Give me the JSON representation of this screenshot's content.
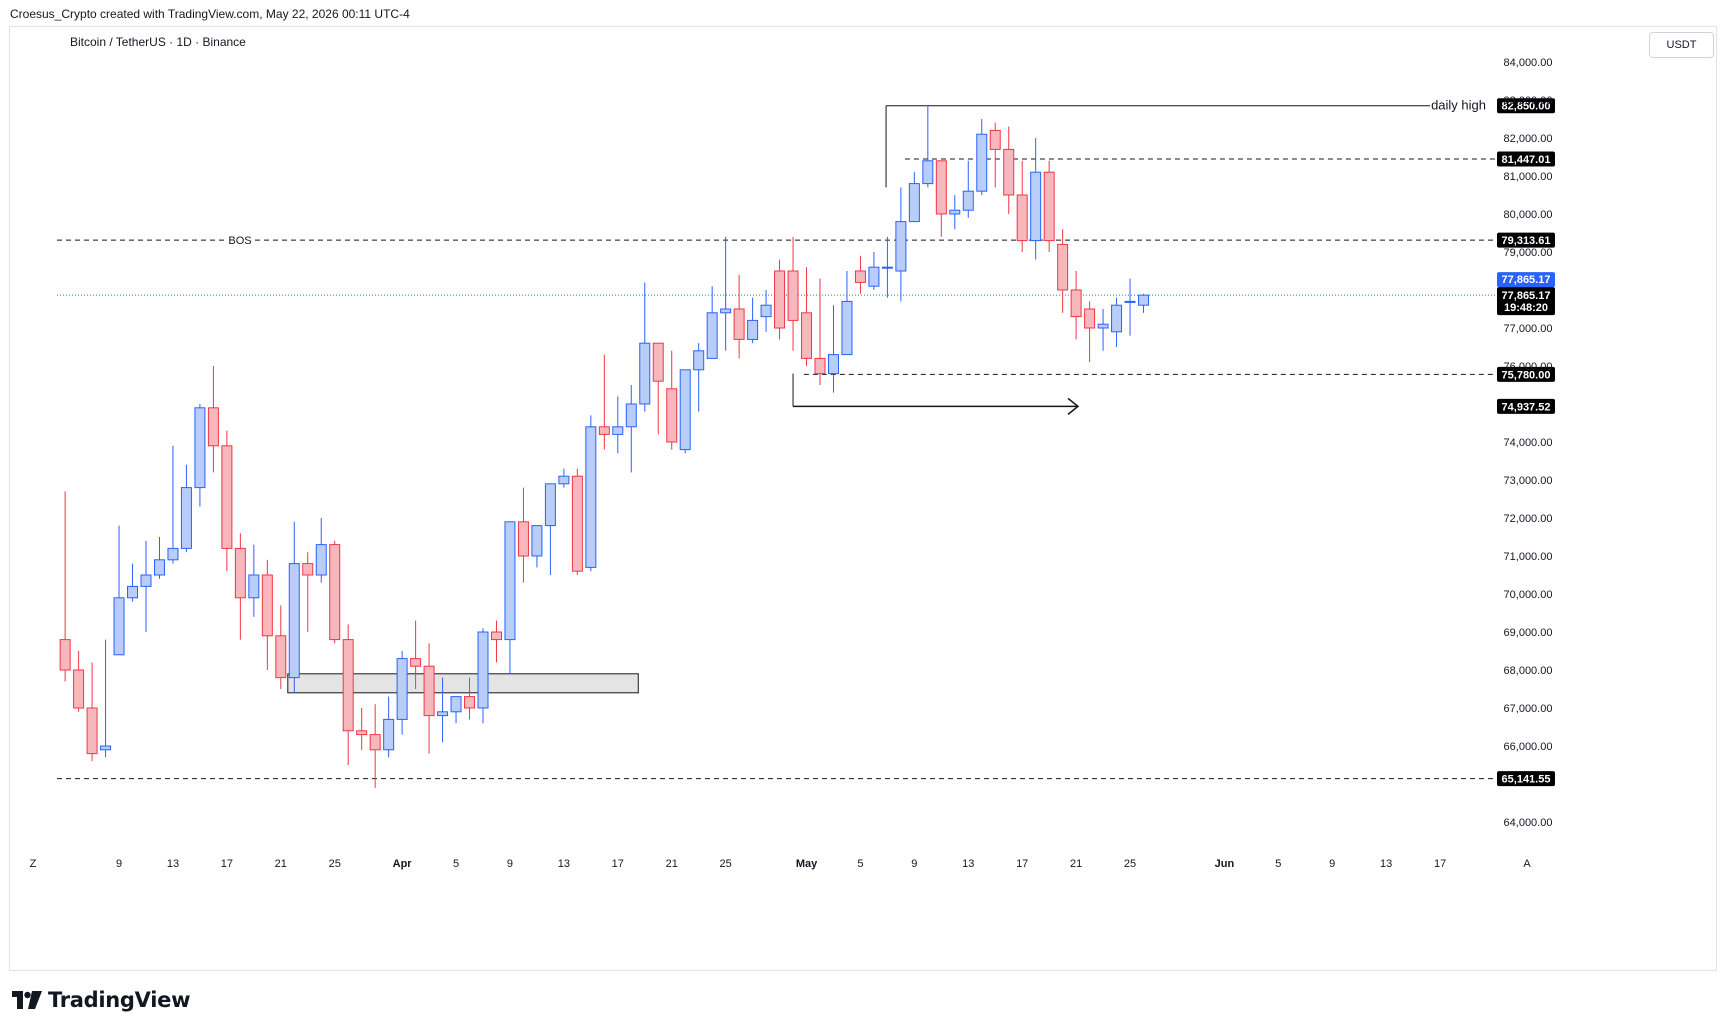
{
  "header": {
    "created_by": "Croesus_Crypto created with TradingView.com, May 22, 2026 00:11 UTC-4"
  },
  "symbol": {
    "title": "Bitcoin / TetherUS · 1D · Binance"
  },
  "currency_button": "USDT",
  "brand": {
    "name": "TradingView"
  },
  "colors": {
    "up_fill": "#b8cdf7",
    "up_border": "#2962ff",
    "down_fill": "#f7b8bd",
    "down_border": "#f23645",
    "line": "#131722",
    "current_price": "#2962ff",
    "box_fill": "#e4e4e4"
  },
  "chart_data": {
    "type": "candlestick",
    "price_axis": {
      "range": [
        63300,
        84900
      ],
      "ticks": [
        "84,000.00",
        "83,000.00",
        "82,000.00",
        "81,000.00",
        "80,000.00",
        "79,000.00",
        "77,000.00",
        "76,000.00",
        "74,000.00",
        "73,000.00",
        "72,000.00",
        "71,000.00",
        "70,000.00",
        "69,000.00",
        "68,000.00",
        "67,000.00",
        "66,000.00",
        "64,000.00"
      ],
      "tick_values": [
        84000,
        83000,
        82000,
        81000,
        80000,
        79000,
        77000,
        76000,
        74000,
        73000,
        72000,
        71000,
        70000,
        69000,
        68000,
        67000,
        66000,
        64000
      ]
    },
    "time_axis": {
      "labels": [
        "9",
        "13",
        "17",
        "21",
        "25",
        "Apr",
        "5",
        "9",
        "13",
        "17",
        "21",
        "25",
        "May",
        "5",
        "9",
        "13",
        "17",
        "21",
        "25",
        "Jun",
        "5",
        "9",
        "13",
        "17"
      ],
      "label_days": [
        -52,
        -48,
        -44,
        -40,
        -36,
        -31,
        -27,
        -23,
        -19,
        -15,
        -11,
        -7,
        -1,
        3,
        7,
        11,
        15,
        19,
        23,
        30,
        34,
        38,
        42,
        46
      ],
      "bold_labels": [
        "Apr",
        "May",
        "Jun"
      ],
      "corner_left": "Z",
      "corner_right": "A"
    },
    "candles_start_day": -56,
    "candles": [
      [
        68800,
        72700,
        68000,
        67700
      ],
      [
        68000,
        68500,
        67000,
        66900
      ],
      [
        67000,
        68200,
        65800,
        65600
      ],
      [
        65900,
        68800,
        66000,
        65700
      ],
      [
        68400,
        71800,
        69900,
        68400
      ],
      [
        69900,
        70800,
        70200,
        69800
      ],
      [
        70200,
        71400,
        70500,
        69000
      ],
      [
        70500,
        71500,
        70900,
        70400
      ],
      [
        70900,
        73900,
        71200,
        70800
      ],
      [
        71200,
        73400,
        72800,
        71100
      ],
      [
        72800,
        75000,
        74900,
        72300
      ],
      [
        74900,
        76000,
        73900,
        73200
      ],
      [
        73900,
        74300,
        71200,
        70600
      ],
      [
        71200,
        71600,
        69900,
        68800
      ],
      [
        69900,
        71300,
        70500,
        69400
      ],
      [
        70500,
        70900,
        68900,
        68000
      ],
      [
        68900,
        69700,
        67800,
        67500
      ],
      [
        67800,
        71900,
        70800,
        67400
      ],
      [
        70800,
        71100,
        70500,
        69000
      ],
      [
        70500,
        72000,
        71300,
        70300
      ],
      [
        71300,
        71400,
        68800,
        68700
      ],
      [
        68800,
        69200,
        66400,
        65500
      ],
      [
        66400,
        67000,
        66300,
        65900
      ],
      [
        66300,
        67100,
        65900,
        64900
      ],
      [
        65900,
        67300,
        66700,
        65700
      ],
      [
        66700,
        68500,
        68300,
        66300
      ],
      [
        68300,
        69300,
        68100,
        67500
      ],
      [
        68100,
        68700,
        66800,
        65800
      ],
      [
        66800,
        67800,
        66900,
        66100
      ],
      [
        66900,
        67300,
        67300,
        66600
      ],
      [
        67300,
        67800,
        67000,
        66700
      ],
      [
        67000,
        69100,
        69000,
        66600
      ],
      [
        69000,
        69300,
        68800,
        68200
      ],
      [
        68800,
        71600,
        71900,
        67900
      ],
      [
        71900,
        72800,
        71000,
        70300
      ],
      [
        71000,
        71800,
        71800,
        70700
      ],
      [
        71800,
        72500,
        72900,
        70500
      ],
      [
        72900,
        73300,
        73100,
        72800
      ],
      [
        73100,
        73300,
        70600,
        70500
      ],
      [
        70700,
        74700,
        74400,
        70600
      ],
      [
        74400,
        76300,
        74200,
        73800
      ],
      [
        74200,
        75200,
        74400,
        73700
      ],
      [
        74400,
        75500,
        75000,
        73200
      ],
      [
        75000,
        78200,
        76600,
        74800
      ],
      [
        76600,
        76200,
        75600,
        74200
      ],
      [
        75400,
        76400,
        74000,
        73800
      ],
      [
        73800,
        75600,
        75900,
        73700
      ],
      [
        75900,
        76600,
        76400,
        74800
      ],
      [
        76200,
        78100,
        77400,
        76300
      ],
      [
        77400,
        79400,
        77500,
        76400
      ],
      [
        77500,
        78400,
        76700,
        76200
      ],
      [
        76700,
        77800,
        77200,
        76600
      ],
      [
        77300,
        78000,
        77600,
        76900
      ],
      [
        78500,
        78800,
        77000,
        76700
      ],
      [
        78500,
        79400,
        77200,
        76400
      ],
      [
        77400,
        78600,
        76200,
        76000
      ],
      [
        76200,
        78300,
        75800,
        75500
      ],
      [
        75800,
        77600,
        76300,
        75300
      ],
      [
        76300,
        78500,
        77700,
        76300
      ],
      [
        78500,
        78900,
        78200,
        77900
      ],
      [
        78100,
        79000,
        78600,
        78000
      ],
      [
        78600,
        79400,
        78600,
        77800
      ],
      [
        78500,
        80700,
        79800,
        77700
      ],
      [
        79800,
        81100,
        80800,
        79800
      ],
      [
        80800,
        82850,
        81400,
        80700
      ],
      [
        81400,
        81400,
        80000,
        79400
      ],
      [
        80000,
        80500,
        80100,
        79600
      ],
      [
        80100,
        81400,
        80600,
        79900
      ],
      [
        80600,
        82500,
        82100,
        80500
      ],
      [
        82200,
        82400,
        81700,
        80700
      ],
      [
        81700,
        82300,
        80500,
        80000
      ],
      [
        80500,
        81400,
        79300,
        79000
      ],
      [
        79300,
        82000,
        81100,
        78800
      ],
      [
        81100,
        81400,
        79300,
        79000
      ],
      [
        79200,
        79600,
        78000,
        77400
      ],
      [
        78000,
        78500,
        77300,
        76700
      ],
      [
        77500,
        77700,
        77000,
        76100
      ],
      [
        77000,
        77500,
        77100,
        76400
      ],
      [
        76900,
        77800,
        77600,
        76500
      ],
      [
        77700,
        78300,
        77700,
        76800
      ],
      [
        77600,
        77900,
        77865,
        77400
      ]
    ],
    "levels": [
      {
        "value": 82850,
        "label": "82,850.00",
        "style": "solid",
        "annotation": "daily high"
      },
      {
        "value": 81447.01,
        "label": "81,447.01",
        "style": "dashed"
      },
      {
        "value": 79313.61,
        "label": "79,313.61",
        "style": "dashed",
        "annotation": "BOS"
      },
      {
        "value": 75780.0,
        "label": "75,780.00",
        "style": "dashed"
      },
      {
        "value": 74937.52,
        "label": "74,937.52",
        "style": "arrow"
      },
      {
        "value": 65141.55,
        "label": "65,141.55",
        "style": "dashed"
      }
    ],
    "current_price": {
      "value": 77865.17,
      "label": "77,865.17",
      "countdown": "19:48:20"
    },
    "zone": {
      "from_day": -40,
      "to_day": -14,
      "low": 67400,
      "high": 67900
    }
  }
}
